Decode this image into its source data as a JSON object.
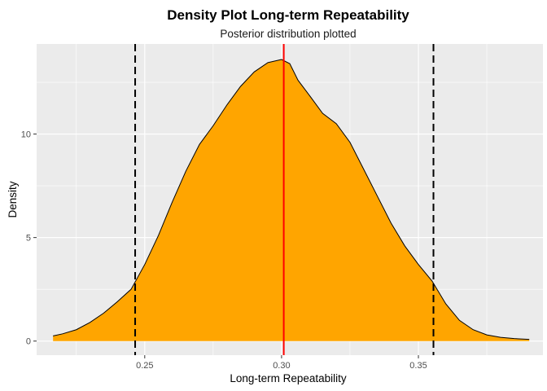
{
  "chart_data": {
    "type": "area",
    "title": "Density Plot Long-term Repeatability",
    "subtitle": "Posterior distribution plotted",
    "xlabel": "Long-term Repeatability",
    "ylabel": "Density",
    "xlim": [
      0.2105,
      0.3955
    ],
    "ylim": [
      -0.68,
      14.35
    ],
    "x_ticks": [
      0.25,
      0.3,
      0.35
    ],
    "x_tick_labels": [
      "0.25",
      "0.30",
      "0.35"
    ],
    "y_ticks": [
      0,
      5,
      10
    ],
    "y_tick_labels": [
      "0",
      "5",
      "10"
    ],
    "grid": true,
    "legend": "none",
    "fill_color": "#FFA500",
    "outline_color": "#000000",
    "panel_color": "#EBEBEB",
    "vlines": [
      {
        "x": 0.2465,
        "color": "#000000",
        "style": "dashed"
      },
      {
        "x": 0.3008,
        "color": "#FF0000",
        "style": "solid"
      },
      {
        "x": 0.3555,
        "color": "#000000",
        "style": "dashed"
      }
    ],
    "density": {
      "x": [
        0.2165,
        0.22,
        0.225,
        0.23,
        0.235,
        0.24,
        0.245,
        0.25,
        0.255,
        0.26,
        0.265,
        0.27,
        0.275,
        0.28,
        0.285,
        0.29,
        0.295,
        0.3,
        0.303,
        0.306,
        0.31,
        0.315,
        0.32,
        0.325,
        0.33,
        0.335,
        0.34,
        0.345,
        0.35,
        0.355,
        0.36,
        0.365,
        0.37,
        0.375,
        0.38,
        0.385,
        0.3905
      ],
      "y": [
        0.25,
        0.35,
        0.55,
        0.9,
        1.35,
        1.9,
        2.5,
        3.7,
        5.1,
        6.7,
        8.2,
        9.5,
        10.4,
        11.4,
        12.3,
        13.0,
        13.45,
        13.6,
        13.4,
        12.6,
        11.9,
        11.0,
        10.5,
        9.6,
        8.3,
        7.0,
        5.7,
        4.6,
        3.7,
        2.9,
        1.8,
        1.0,
        0.55,
        0.3,
        0.18,
        0.12,
        0.08
      ]
    }
  }
}
